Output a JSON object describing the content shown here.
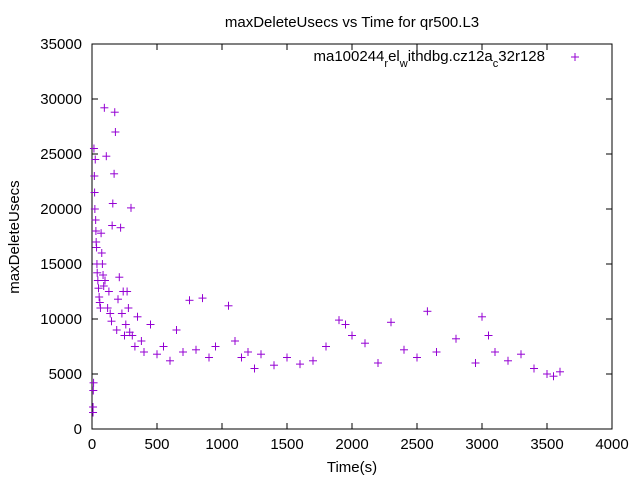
{
  "chart_data": {
    "type": "scatter",
    "title": "maxDeleteUsecs vs Time for qr500.L3",
    "xlabel": "Time(s)",
    "ylabel": "maxDeleteUsecs",
    "xlim": [
      0,
      4000
    ],
    "ylim": [
      0,
      35000
    ],
    "xticks": [
      0,
      500,
      1000,
      1500,
      2000,
      2500,
      3000,
      3500,
      4000
    ],
    "yticks": [
      0,
      5000,
      10000,
      15000,
      20000,
      25000,
      30000,
      35000
    ],
    "xtick_labels": [
      "0",
      "500",
      "1000",
      "1500",
      "2000",
      "2500",
      "3000",
      "3500",
      "4000"
    ],
    "ytick_labels": [
      "0",
      "5000",
      "10000",
      "15000",
      "20000",
      "25000",
      "30000",
      "35000"
    ],
    "grid": false,
    "legend_position": "top-right",
    "legend": {
      "base": "ma100244",
      "sub1": "r",
      "mid1": "el",
      "sub2": "w",
      "mid2": "ithdbg.cz12a",
      "sub3": "c",
      "tail": "32r128"
    },
    "marker": "+",
    "color": "#9400d3",
    "series": [
      {
        "points": [
          [
            8,
            1500
          ],
          [
            8,
            2000
          ],
          [
            10,
            3500
          ],
          [
            12,
            4200
          ],
          [
            15,
            25500
          ],
          [
            18,
            23000
          ],
          [
            20,
            21500
          ],
          [
            22,
            20000
          ],
          [
            25,
            24500
          ],
          [
            28,
            19000
          ],
          [
            30,
            18000
          ],
          [
            32,
            17000
          ],
          [
            35,
            16500
          ],
          [
            38,
            15000
          ],
          [
            40,
            14200
          ],
          [
            45,
            13500
          ],
          [
            50,
            12800
          ],
          [
            55,
            12000
          ],
          [
            60,
            11500
          ],
          [
            65,
            11000
          ],
          [
            70,
            17800
          ],
          [
            75,
            16000
          ],
          [
            80,
            15000
          ],
          [
            85,
            14000
          ],
          [
            90,
            13000
          ],
          [
            95,
            29200
          ],
          [
            100,
            13500
          ],
          [
            110,
            24800
          ],
          [
            120,
            11000
          ],
          [
            130,
            12500
          ],
          [
            140,
            10500
          ],
          [
            150,
            9800
          ],
          [
            155,
            18500
          ],
          [
            160,
            20500
          ],
          [
            170,
            23200
          ],
          [
            175,
            28800
          ],
          [
            180,
            27000
          ],
          [
            190,
            9000
          ],
          [
            200,
            11800
          ],
          [
            210,
            13800
          ],
          [
            220,
            18300
          ],
          [
            230,
            10500
          ],
          [
            240,
            12500
          ],
          [
            250,
            8500
          ],
          [
            260,
            9500
          ],
          [
            270,
            12500
          ],
          [
            280,
            11000
          ],
          [
            290,
            8800
          ],
          [
            300,
            20100
          ],
          [
            310,
            8500
          ],
          [
            330,
            7500
          ],
          [
            350,
            10200
          ],
          [
            380,
            8000
          ],
          [
            400,
            7000
          ],
          [
            450,
            9500
          ],
          [
            500,
            6800
          ],
          [
            550,
            7500
          ],
          [
            600,
            6200
          ],
          [
            650,
            9000
          ],
          [
            700,
            7000
          ],
          [
            750,
            11700
          ],
          [
            800,
            7200
          ],
          [
            850,
            11900
          ],
          [
            900,
            6500
          ],
          [
            950,
            7500
          ],
          [
            1050,
            11200
          ],
          [
            1100,
            8000
          ],
          [
            1150,
            6500
          ],
          [
            1200,
            7000
          ],
          [
            1250,
            5500
          ],
          [
            1300,
            6800
          ],
          [
            1400,
            5800
          ],
          [
            1500,
            6500
          ],
          [
            1600,
            5900
          ],
          [
            1700,
            6200
          ],
          [
            1800,
            7500
          ],
          [
            1900,
            9900
          ],
          [
            1950,
            9500
          ],
          [
            2000,
            8500
          ],
          [
            2100,
            7800
          ],
          [
            2200,
            6000
          ],
          [
            2300,
            9700
          ],
          [
            2400,
            7200
          ],
          [
            2500,
            6500
          ],
          [
            2580,
            10700
          ],
          [
            2650,
            7000
          ],
          [
            2800,
            8200
          ],
          [
            2950,
            6000
          ],
          [
            3000,
            10200
          ],
          [
            3050,
            8500
          ],
          [
            3100,
            7000
          ],
          [
            3200,
            6200
          ],
          [
            3300,
            6800
          ],
          [
            3400,
            5500
          ],
          [
            3500,
            5000
          ],
          [
            3550,
            4800
          ],
          [
            3600,
            5200
          ]
        ]
      }
    ]
  }
}
